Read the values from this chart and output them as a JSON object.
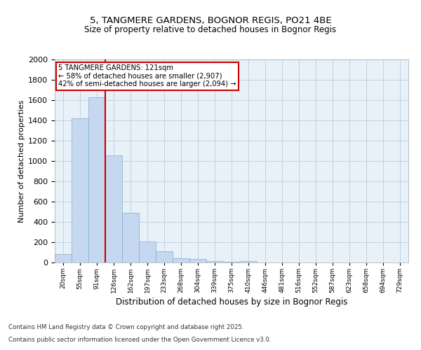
{
  "title1": "5, TANGMERE GARDENS, BOGNOR REGIS, PO21 4BE",
  "title2": "Size of property relative to detached houses in Bognor Regis",
  "xlabel": "Distribution of detached houses by size in Bognor Regis",
  "ylabel": "Number of detached properties",
  "categories": [
    "20sqm",
    "55sqm",
    "91sqm",
    "126sqm",
    "162sqm",
    "197sqm",
    "233sqm",
    "268sqm",
    "304sqm",
    "339sqm",
    "375sqm",
    "410sqm",
    "446sqm",
    "481sqm",
    "516sqm",
    "552sqm",
    "587sqm",
    "623sqm",
    "658sqm",
    "694sqm",
    "729sqm"
  ],
  "values": [
    85,
    1420,
    1625,
    1055,
    490,
    205,
    110,
    40,
    35,
    15,
    10,
    15,
    0,
    0,
    0,
    0,
    0,
    0,
    0,
    0,
    0
  ],
  "bar_color": "#c5d8ef",
  "bar_edgecolor": "#7aafd4",
  "bar_linewidth": 0.5,
  "grid_color": "#b8cfe0",
  "background_color": "#e8f0f8",
  "red_line_color": "#cc0000",
  "ylim": [
    0,
    2000
  ],
  "yticks": [
    0,
    200,
    400,
    600,
    800,
    1000,
    1200,
    1400,
    1600,
    1800,
    2000
  ],
  "annotation_title": "5 TANGMERE GARDENS: 121sqm",
  "annotation_line1": "← 58% of detached houses are smaller (2,907)",
  "annotation_line2": "42% of semi-detached houses are larger (2,094) →",
  "annotation_box_color": "#cc0000",
  "footer1": "Contains HM Land Registry data © Crown copyright and database right 2025.",
  "footer2": "Contains public sector information licensed under the Open Government Licence v3.0."
}
